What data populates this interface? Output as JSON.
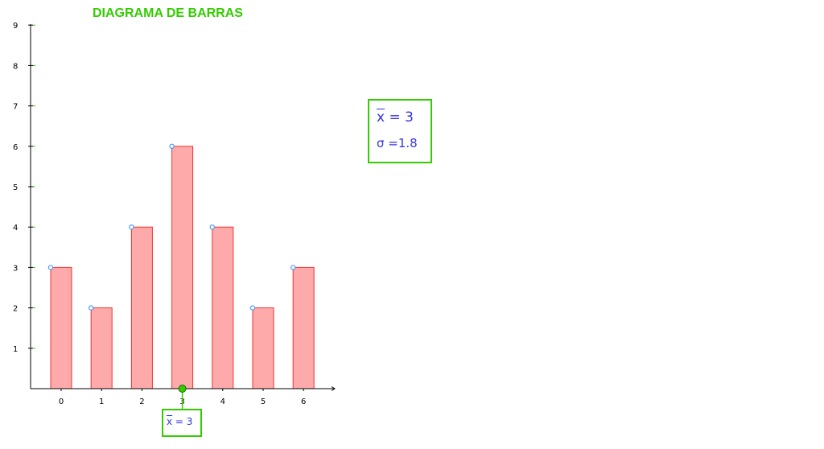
{
  "chart_data": {
    "type": "bar",
    "title": "DIAGRAMA DE BARRAS",
    "categories": [
      "0",
      "1",
      "2",
      "3",
      "4",
      "5",
      "6"
    ],
    "x": [
      0,
      1,
      2,
      3,
      4,
      5,
      6
    ],
    "values": [
      3,
      2,
      4,
      6,
      4,
      2,
      3
    ],
    "ylim": [
      0,
      9
    ],
    "yticks": [
      1,
      2,
      3,
      4,
      5,
      6,
      7,
      8,
      9
    ],
    "xlabel": "",
    "ylabel": "",
    "grid": false,
    "bar_fill_color": "#ffaaaa",
    "bar_edge_color": "#ee3333",
    "point_color": "#4499ff",
    "mean_marker_color": "#33cc00"
  },
  "stats": {
    "mean_symbol": "x",
    "mean_equals": " =  3",
    "sigma_text": "σ =1.8",
    "marker_symbol": "x",
    "marker_equals": " =  3",
    "mean_value": 3
  },
  "colors": {
    "title": "#33cc00",
    "box_border": "#33cc00",
    "stat_text": "#3333dd"
  }
}
